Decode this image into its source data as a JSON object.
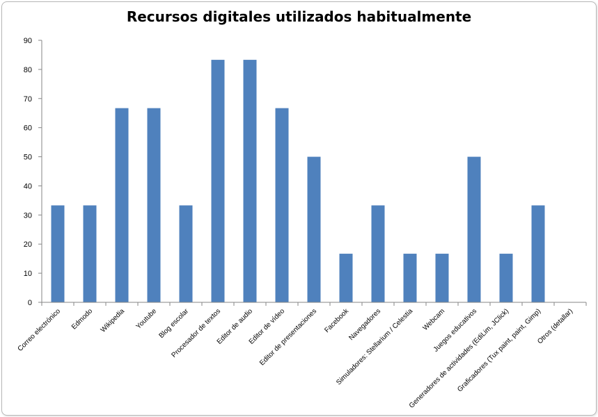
{
  "chart_data": {
    "type": "bar",
    "title": "Recursos digitales utilizados habitualmente",
    "xlabel": "",
    "ylabel": "",
    "ylim": [
      0,
      90
    ],
    "yticks": [
      0,
      10,
      20,
      30,
      40,
      50,
      60,
      70,
      80,
      90
    ],
    "categories": [
      "Correo electrónico",
      "Edmodo",
      "Wikipedia",
      "Youtube",
      "Blog escolar",
      "Procesador de textos",
      "Editor de audio",
      "Editor de vídeo",
      "Editor de presentaciones",
      "Facebook",
      "Navegadores",
      "Simuladores: Stellarium / Celestia",
      "Webcam",
      "Juegos educativos",
      "Generadores de actividades (EdiLim, JClick)",
      "Graficadores (Tux paint, paint, Gimp)",
      "Otros (detallar)"
    ],
    "values": [
      33.3,
      33.3,
      66.7,
      66.7,
      33.3,
      83.3,
      83.3,
      66.7,
      50,
      16.7,
      33.3,
      16.7,
      16.7,
      50,
      16.7,
      33.3,
      0
    ],
    "grid": false,
    "legend": "none",
    "bar_color": "#4F81BD"
  }
}
